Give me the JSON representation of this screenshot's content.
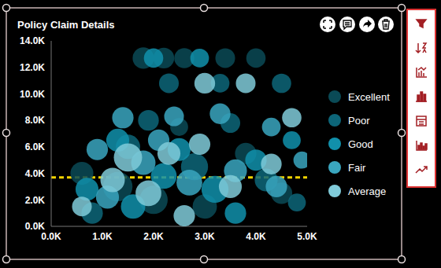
{
  "chart_data": {
    "type": "bubble",
    "title": "Policy Claim Details",
    "xlim": [
      0,
      5000
    ],
    "xticks": [
      {
        "value": 0,
        "label": "0.0K"
      },
      {
        "value": 1000,
        "label": "1.0K"
      },
      {
        "value": 2000,
        "label": "2.0K"
      },
      {
        "value": 3000,
        "label": "3.0K"
      },
      {
        "value": 4000,
        "label": "4.0K"
      },
      {
        "value": 5000,
        "label": "5.0K"
      }
    ],
    "ylim": [
      0,
      14000
    ],
    "yticks": [
      {
        "value": 0,
        "label": "0.0K"
      },
      {
        "value": 2000,
        "label": "2.0K"
      },
      {
        "value": 4000,
        "label": "4.0K"
      },
      {
        "value": 6000,
        "label": "6.0K"
      },
      {
        "value": 8000,
        "label": "8.0K"
      },
      {
        "value": 10000,
        "label": "10.0K"
      },
      {
        "value": 12000,
        "label": "12.0K"
      },
      {
        "value": 14000,
        "label": "14.0K"
      }
    ],
    "grid": false,
    "legend": "right",
    "reference_line": {
      "y": 3700,
      "color": "#f5d400",
      "line_style": "dashed"
    },
    "series": [
      {
        "name": "Excellent",
        "color": "#0a4a56",
        "values": [
          {
            "x": 1800,
            "y": 12700,
            "size": 30
          },
          {
            "x": 2200,
            "y": 12700,
            "size": 28
          },
          {
            "x": 2600,
            "y": 12700,
            "size": 26
          },
          {
            "x": 3400,
            "y": 12700,
            "size": 25
          },
          {
            "x": 4000,
            "y": 12700,
            "size": 24
          },
          {
            "x": 1300,
            "y": 3000,
            "size": 60
          },
          {
            "x": 2000,
            "y": 2000,
            "size": 55
          },
          {
            "x": 3000,
            "y": 1500,
            "size": 40
          },
          {
            "x": 4500,
            "y": 2500,
            "size": 30
          },
          {
            "x": 600,
            "y": 4000,
            "size": 35
          },
          {
            "x": 3800,
            "y": 5500,
            "size": 30
          },
          {
            "x": 2500,
            "y": 7500,
            "size": 20
          }
        ]
      },
      {
        "name": "Poor",
        "color": "#0d6679",
        "values": [
          {
            "x": 2300,
            "y": 10800,
            "size": 25
          },
          {
            "x": 3300,
            "y": 10800,
            "size": 22
          },
          {
            "x": 4500,
            "y": 10800,
            "size": 24
          },
          {
            "x": 1500,
            "y": 6000,
            "size": 40
          },
          {
            "x": 2800,
            "y": 4500,
            "size": 50
          },
          {
            "x": 4200,
            "y": 3500,
            "size": 35
          },
          {
            "x": 800,
            "y": 1000,
            "size": 30
          },
          {
            "x": 3500,
            "y": 7800,
            "size": 25
          },
          {
            "x": 1900,
            "y": 8000,
            "size": 28
          },
          {
            "x": 4800,
            "y": 1800,
            "size": 20
          }
        ]
      },
      {
        "name": "Good",
        "color": "#1190ab",
        "values": [
          {
            "x": 2000,
            "y": 12700,
            "size": 24
          },
          {
            "x": 2900,
            "y": 12700,
            "size": 22
          },
          {
            "x": 1300,
            "y": 6500,
            "size": 35
          },
          {
            "x": 2200,
            "y": 3800,
            "size": 45
          },
          {
            "x": 3200,
            "y": 2800,
            "size": 50
          },
          {
            "x": 4000,
            "y": 5000,
            "size": 30
          },
          {
            "x": 700,
            "y": 2800,
            "size": 35
          },
          {
            "x": 4700,
            "y": 6500,
            "size": 20
          },
          {
            "x": 3600,
            "y": 1000,
            "size": 30
          },
          {
            "x": 2500,
            "y": 5800,
            "size": 35
          },
          {
            "x": 1600,
            "y": 1500,
            "size": 40
          }
        ]
      },
      {
        "name": "Fair",
        "color": "#3aa6bf",
        "values": [
          {
            "x": 1400,
            "y": 8200,
            "size": 30
          },
          {
            "x": 2400,
            "y": 8300,
            "size": 25
          },
          {
            "x": 3300,
            "y": 8500,
            "size": 28
          },
          {
            "x": 4300,
            "y": 7500,
            "size": 22
          },
          {
            "x": 900,
            "y": 5800,
            "size": 30
          },
          {
            "x": 1800,
            "y": 4800,
            "size": 40
          },
          {
            "x": 2700,
            "y": 3300,
            "size": 45
          },
          {
            "x": 3600,
            "y": 4200,
            "size": 35
          },
          {
            "x": 4400,
            "y": 3000,
            "size": 30
          },
          {
            "x": 1100,
            "y": 2200,
            "size": 35
          },
          {
            "x": 4900,
            "y": 5000,
            "size": 18
          },
          {
            "x": 2100,
            "y": 6500,
            "size": 30
          }
        ]
      },
      {
        "name": "Average",
        "color": "#80cbd9",
        "values": [
          {
            "x": 1500,
            "y": 5200,
            "size": 55
          },
          {
            "x": 2300,
            "y": 5500,
            "size": 35
          },
          {
            "x": 3000,
            "y": 10800,
            "size": 28
          },
          {
            "x": 3800,
            "y": 10800,
            "size": 25
          },
          {
            "x": 2900,
            "y": 6200,
            "size": 30
          },
          {
            "x": 4700,
            "y": 8200,
            "size": 24
          },
          {
            "x": 1200,
            "y": 3500,
            "size": 40
          },
          {
            "x": 3500,
            "y": 3000,
            "size": 35
          },
          {
            "x": 4300,
            "y": 4700,
            "size": 28
          },
          {
            "x": 600,
            "y": 1500,
            "size": 25
          },
          {
            "x": 2600,
            "y": 800,
            "size": 30
          },
          {
            "x": 1900,
            "y": 2500,
            "size": 45
          }
        ]
      }
    ]
  }
}
